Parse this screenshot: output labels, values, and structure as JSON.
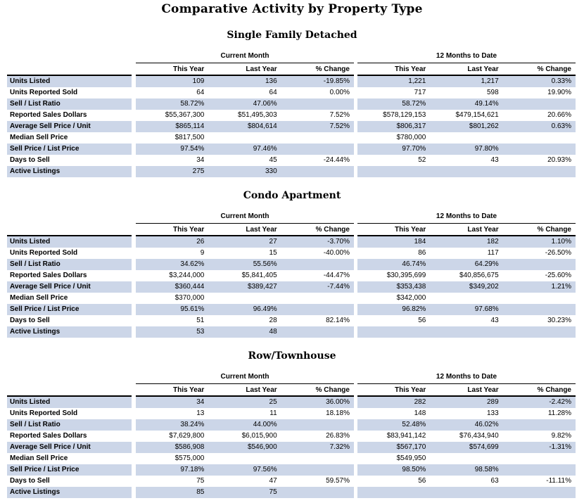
{
  "page": {
    "title": "Comparative Activity by Property Type"
  },
  "headers": {
    "group_current": "Current Month",
    "group_ytd": "12 Months to Date",
    "cols": [
      "This Year",
      "Last Year",
      "% Change"
    ]
  },
  "colors": {
    "stripe": "#ccd6e8",
    "rule": "#000000",
    "text": "#000000"
  },
  "sections": [
    {
      "title": "Single Family Detached",
      "rows": [
        {
          "label": "Units Listed",
          "cm": [
            "109",
            "136",
            "-19.85%"
          ],
          "ytd": [
            "1,221",
            "1,217",
            "0.33%"
          ]
        },
        {
          "label": "Units Reported Sold",
          "cm": [
            "64",
            "64",
            "0.00%"
          ],
          "ytd": [
            "717",
            "598",
            "19.90%"
          ]
        },
        {
          "label": "Sell / List Ratio",
          "cm": [
            "58.72%",
            "47.06%",
            ""
          ],
          "ytd": [
            "58.72%",
            "49.14%",
            ""
          ]
        },
        {
          "label": "Reported Sales Dollars",
          "cm": [
            "$55,367,300",
            "$51,495,303",
            "7.52%"
          ],
          "ytd": [
            "$578,129,153",
            "$479,154,621",
            "20.66%"
          ]
        },
        {
          "label": "Average Sell Price / Unit",
          "cm": [
            "$865,114",
            "$804,614",
            "7.52%"
          ],
          "ytd": [
            "$806,317",
            "$801,262",
            "0.63%"
          ]
        },
        {
          "label": "Median Sell Price",
          "cm": [
            "$817,500",
            "",
            ""
          ],
          "ytd": [
            "$780,000",
            "",
            ""
          ]
        },
        {
          "label": "Sell Price / List Price",
          "cm": [
            "97.54%",
            "97.46%",
            ""
          ],
          "ytd": [
            "97.70%",
            "97.80%",
            ""
          ]
        },
        {
          "label": "Days to Sell",
          "cm": [
            "34",
            "45",
            "-24.44%"
          ],
          "ytd": [
            "52",
            "43",
            "20.93%"
          ]
        },
        {
          "label": "Active Listings",
          "cm": [
            "275",
            "330",
            ""
          ],
          "ytd": [
            "",
            "",
            ""
          ]
        }
      ]
    },
    {
      "title": "Condo Apartment",
      "rows": [
        {
          "label": "Units Listed",
          "cm": [
            "26",
            "27",
            "-3.70%"
          ],
          "ytd": [
            "184",
            "182",
            "1.10%"
          ]
        },
        {
          "label": "Units Reported Sold",
          "cm": [
            "9",
            "15",
            "-40.00%"
          ],
          "ytd": [
            "86",
            "117",
            "-26.50%"
          ]
        },
        {
          "label": "Sell / List Ratio",
          "cm": [
            "34.62%",
            "55.56%",
            ""
          ],
          "ytd": [
            "46.74%",
            "64.29%",
            ""
          ]
        },
        {
          "label": "Reported Sales Dollars",
          "cm": [
            "$3,244,000",
            "$5,841,405",
            "-44.47%"
          ],
          "ytd": [
            "$30,395,699",
            "$40,856,675",
            "-25.60%"
          ]
        },
        {
          "label": "Average Sell Price / Unit",
          "cm": [
            "$360,444",
            "$389,427",
            "-7.44%"
          ],
          "ytd": [
            "$353,438",
            "$349,202",
            "1.21%"
          ]
        },
        {
          "label": "Median Sell Price",
          "cm": [
            "$370,000",
            "",
            ""
          ],
          "ytd": [
            "$342,000",
            "",
            ""
          ]
        },
        {
          "label": "Sell Price / List Price",
          "cm": [
            "95.61%",
            "96.49%",
            ""
          ],
          "ytd": [
            "96.82%",
            "97.68%",
            ""
          ]
        },
        {
          "label": "Days to Sell",
          "cm": [
            "51",
            "28",
            "82.14%"
          ],
          "ytd": [
            "56",
            "43",
            "30.23%"
          ]
        },
        {
          "label": "Active Listings",
          "cm": [
            "53",
            "48",
            ""
          ],
          "ytd": [
            "",
            "",
            ""
          ]
        }
      ]
    },
    {
      "title": "Row/Townhouse",
      "rows": [
        {
          "label": "Units Listed",
          "cm": [
            "34",
            "25",
            "36.00%"
          ],
          "ytd": [
            "282",
            "289",
            "-2.42%"
          ]
        },
        {
          "label": "Units Reported Sold",
          "cm": [
            "13",
            "11",
            "18.18%"
          ],
          "ytd": [
            "148",
            "133",
            "11.28%"
          ]
        },
        {
          "label": "Sell / List Ratio",
          "cm": [
            "38.24%",
            "44.00%",
            ""
          ],
          "ytd": [
            "52.48%",
            "46.02%",
            ""
          ]
        },
        {
          "label": "Reported Sales Dollars",
          "cm": [
            "$7,629,800",
            "$6,015,900",
            "26.83%"
          ],
          "ytd": [
            "$83,941,142",
            "$76,434,940",
            "9.82%"
          ]
        },
        {
          "label": "Average Sell Price / Unit",
          "cm": [
            "$586,908",
            "$546,900",
            "7.32%"
          ],
          "ytd": [
            "$567,170",
            "$574,699",
            "-1.31%"
          ]
        },
        {
          "label": "Median Sell Price",
          "cm": [
            "$575,000",
            "",
            ""
          ],
          "ytd": [
            "$549,950",
            "",
            ""
          ]
        },
        {
          "label": "Sell Price / List Price",
          "cm": [
            "97.18%",
            "97.56%",
            ""
          ],
          "ytd": [
            "98.50%",
            "98.58%",
            ""
          ]
        },
        {
          "label": "Days to Sell",
          "cm": [
            "75",
            "47",
            "59.57%"
          ],
          "ytd": [
            "56",
            "63",
            "-11.11%"
          ]
        },
        {
          "label": "Active Listings",
          "cm": [
            "85",
            "75",
            ""
          ],
          "ytd": [
            "",
            "",
            ""
          ]
        }
      ]
    }
  ]
}
